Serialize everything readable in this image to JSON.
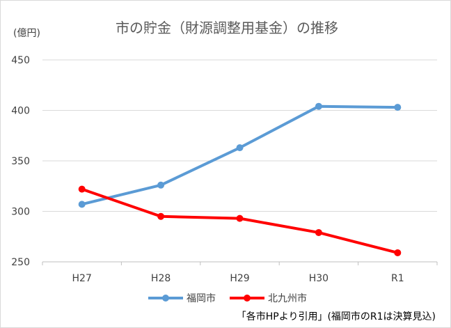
{
  "chart_data": {
    "type": "line",
    "title": "市の貯金（財源調整用基金）の推移",
    "ylabel": "(億円)",
    "xlabel": "",
    "categories": [
      "H27",
      "H28",
      "H29",
      "H30",
      "R1"
    ],
    "ylim": [
      250,
      450
    ],
    "yticks": [
      250,
      300,
      350,
      400,
      450
    ],
    "grid": true,
    "legend_position": "bottom",
    "series": [
      {
        "name": "福岡市",
        "color": "#5b9bd5",
        "values": [
          307,
          326,
          363,
          404,
          403
        ]
      },
      {
        "name": "北九州市",
        "color": "#ff0000",
        "values": [
          322,
          295,
          293,
          279,
          259
        ]
      }
    ],
    "annotation": "「各市HPより引用」(福岡市のR1は決算見込)"
  }
}
